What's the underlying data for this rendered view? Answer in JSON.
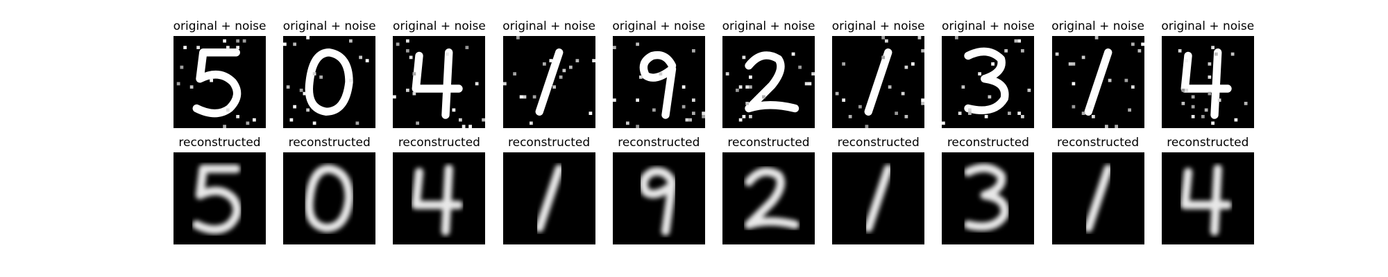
{
  "rows": [
    {
      "title": "original + noise",
      "kind": "noisy",
      "digits": [
        "5",
        "0",
        "4",
        "1",
        "9",
        "2",
        "1",
        "3",
        "1",
        "4"
      ]
    },
    {
      "title": "reconstructed",
      "kind": "clean",
      "digits": [
        "5",
        "0",
        "4",
        "1",
        "9",
        "2",
        "1",
        "3",
        "1",
        "4"
      ]
    }
  ],
  "colors": {
    "background": "#ffffff",
    "panel": "#000000",
    "stroke_noisy": "#ffffff",
    "stroke_clean": "#e8e8e8"
  }
}
